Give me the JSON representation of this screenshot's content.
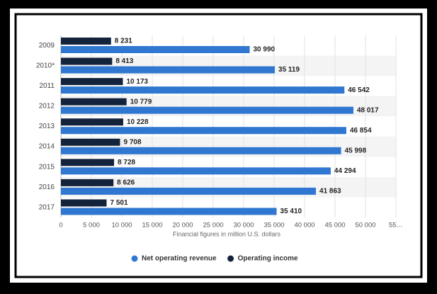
{
  "chart_data": {
    "type": "hbar",
    "categories": [
      "2009",
      "2010*",
      "2011",
      "2012",
      "2013",
      "2014",
      "2015",
      "2016",
      "2017"
    ],
    "series": [
      {
        "name": "Net operating revenue",
        "color": "#2f77d0",
        "values": [
          30990,
          35119,
          46542,
          48017,
          46854,
          45998,
          44294,
          41863,
          35410
        ],
        "value_labels": [
          "30 990",
          "35 119",
          "46 542",
          "48 017",
          "46 854",
          "45 998",
          "44 294",
          "41 863",
          "35 410"
        ]
      },
      {
        "name": "Operating income",
        "color": "#14233c",
        "values": [
          8231,
          8413,
          10173,
          10779,
          10228,
          9708,
          8728,
          8626,
          7501
        ],
        "value_labels": [
          "8 231",
          "8 413",
          "10 173",
          "10 779",
          "10 228",
          "9 708",
          "8 728",
          "8 626",
          "7 501"
        ]
      }
    ],
    "xlabel": "Financial figures in million U.S. dollars",
    "xlim": [
      0,
      55000
    ],
    "xticks": [
      0,
      {
        "value": 5000,
        "label": "5 000"
      },
      {
        "value": 10000,
        "label": "10 000"
      },
      {
        "value": 15000,
        "label": "15 000"
      },
      {
        "value": 20000,
        "label": "20 000"
      },
      {
        "value": 25000,
        "label": "25 000"
      },
      {
        "value": 30000,
        "label": "30 000"
      },
      {
        "value": 35000,
        "label": "35 000"
      },
      {
        "value": 40000,
        "label": "40 000"
      },
      {
        "value": 45000,
        "label": "45 000"
      },
      {
        "value": 50000,
        "label": "50 000"
      },
      {
        "value": 55000,
        "label": "55…"
      }
    ],
    "grid": true,
    "legend": "bottom"
  }
}
